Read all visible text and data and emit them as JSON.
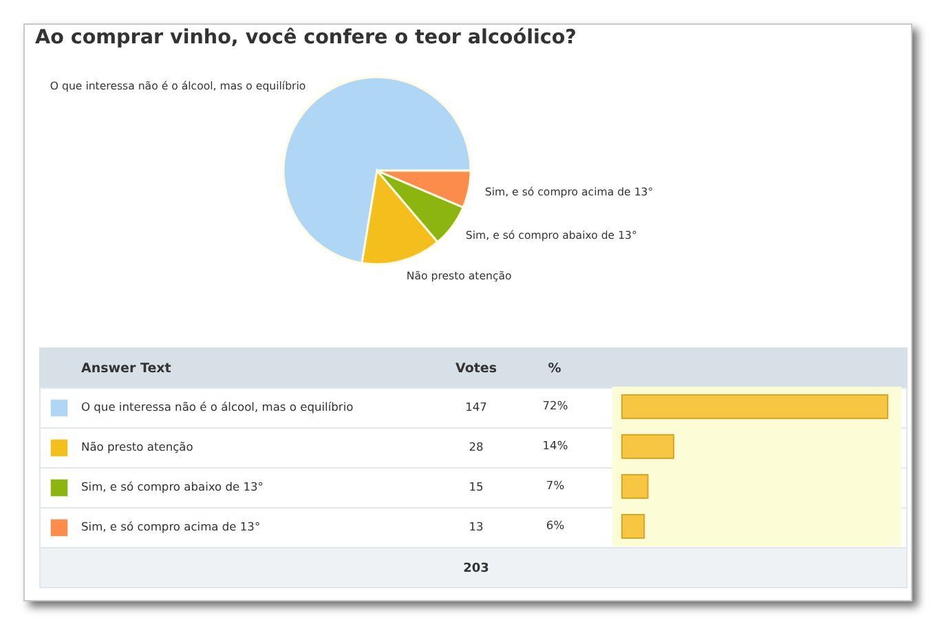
{
  "chart_data": [
    {
      "type": "pie",
      "title": "Ao comprar vinho, você confere o teor alcoólico?",
      "categories": [
        "O que interessa não é o álcool, mas o equilíbrio",
        "Não presto atenção",
        "Sim, e só compro abaixo de 13°",
        "Sim, e só compro acima de 13°"
      ],
      "values": [
        147,
        28,
        15,
        13
      ],
      "colors": [
        "#b0d6f6",
        "#f4bf1c",
        "#8cb50f",
        "#fc8c4b"
      ],
      "data_labels": true,
      "totals": [
        "203"
      ],
      "annotations": [
        "Answer Text",
        "Votes",
        "%"
      ],
      "legend": "bottom"
    },
    {
      "type": "bar",
      "orientation": "horizontal",
      "categories": [
        null,
        null,
        null,
        null
      ],
      "values": [
        72,
        14,
        7,
        6
      ],
      "value_labels": [
        "72%",
        "14%",
        "7%",
        "6%"
      ],
      "color": "#f7c743"
    }
  ]
}
